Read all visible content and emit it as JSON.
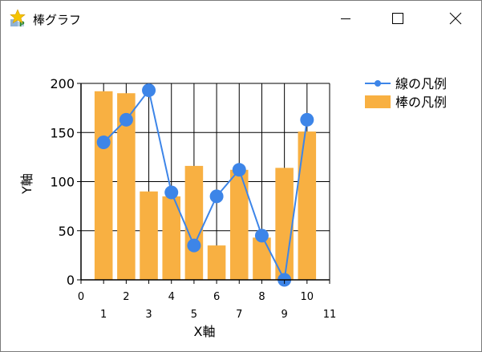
{
  "window": {
    "title": "棒グラフ",
    "icon": "app-star-icon",
    "controls": {
      "minimize": "minimize-icon",
      "maximize": "maximize-icon",
      "close": "close-icon"
    }
  },
  "chart_data": {
    "type": "bar",
    "xlabel": "X軸",
    "ylabel": "Y軸",
    "xlim": [
      0,
      11
    ],
    "ylim": [
      0,
      200
    ],
    "grid": true,
    "legend_placement": "top-right",
    "x_ticks_upper": [
      0,
      2,
      4,
      6,
      8,
      10
    ],
    "x_ticks_lower": [
      1,
      3,
      5,
      7,
      9,
      11
    ],
    "y_ticks": [
      0,
      50,
      100,
      150,
      200
    ],
    "categories": [
      1,
      2,
      3,
      4,
      5,
      6,
      7,
      8,
      9,
      10
    ],
    "series": [
      {
        "name": "線の凡例",
        "kind": "line",
        "color": "#3d85e8",
        "x": [
          1,
          2,
          3,
          4,
          5,
          6,
          7,
          8,
          9,
          10
        ],
        "values": [
          140,
          163,
          193,
          89,
          35,
          85,
          112,
          45,
          0,
          163
        ]
      },
      {
        "name": "棒の凡例",
        "kind": "bar",
        "color": "#f8b042",
        "x": [
          1,
          2,
          3,
          4,
          5,
          6,
          7,
          8,
          9,
          10
        ],
        "values": [
          192,
          190,
          90,
          85,
          116,
          35,
          112,
          43,
          114,
          151
        ]
      }
    ]
  }
}
